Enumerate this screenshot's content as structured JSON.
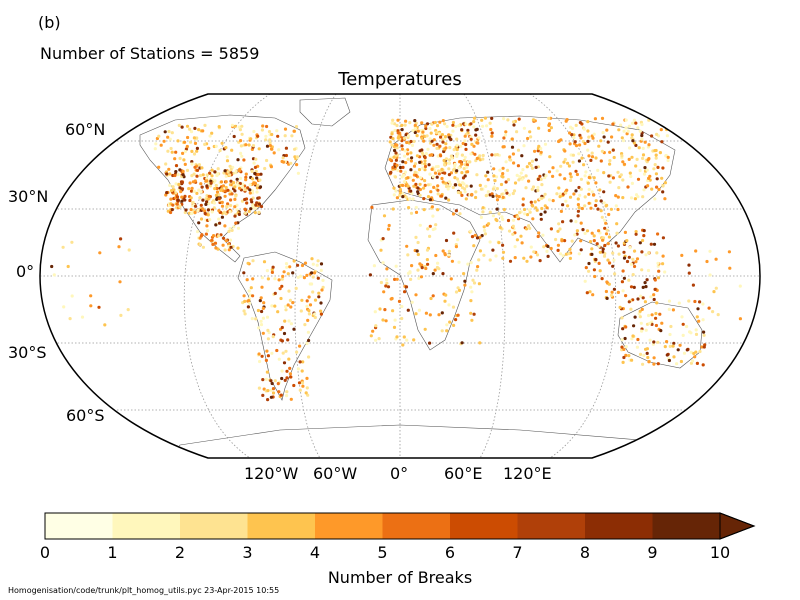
{
  "panel_label": "(b)",
  "station_count_text": "Number of Stations = 5859",
  "title": "Temperatures",
  "lat_labels": [
    "60°N",
    "30°N",
    "0°",
    "30°S",
    "60°S"
  ],
  "lon_labels": [
    "120°W",
    "60°W",
    "0°",
    "60°E",
    "120°E"
  ],
  "colorbar": {
    "label": "Number of Breaks",
    "ticks": [
      "0",
      "1",
      "2",
      "3",
      "4",
      "5",
      "6",
      "7",
      "8",
      "9",
      "10"
    ],
    "colors": [
      "#ffffe5",
      "#fff7bc",
      "#fee391",
      "#fec44f",
      "#fe9929",
      "#ec7014",
      "#cc4c02",
      "#b04009",
      "#8c2d04",
      "#662506"
    ],
    "extend": "max"
  },
  "footer": "Homogenisation/code/trunk/plt_homog_utils.pyc   23-Apr-2015 10:55"
}
